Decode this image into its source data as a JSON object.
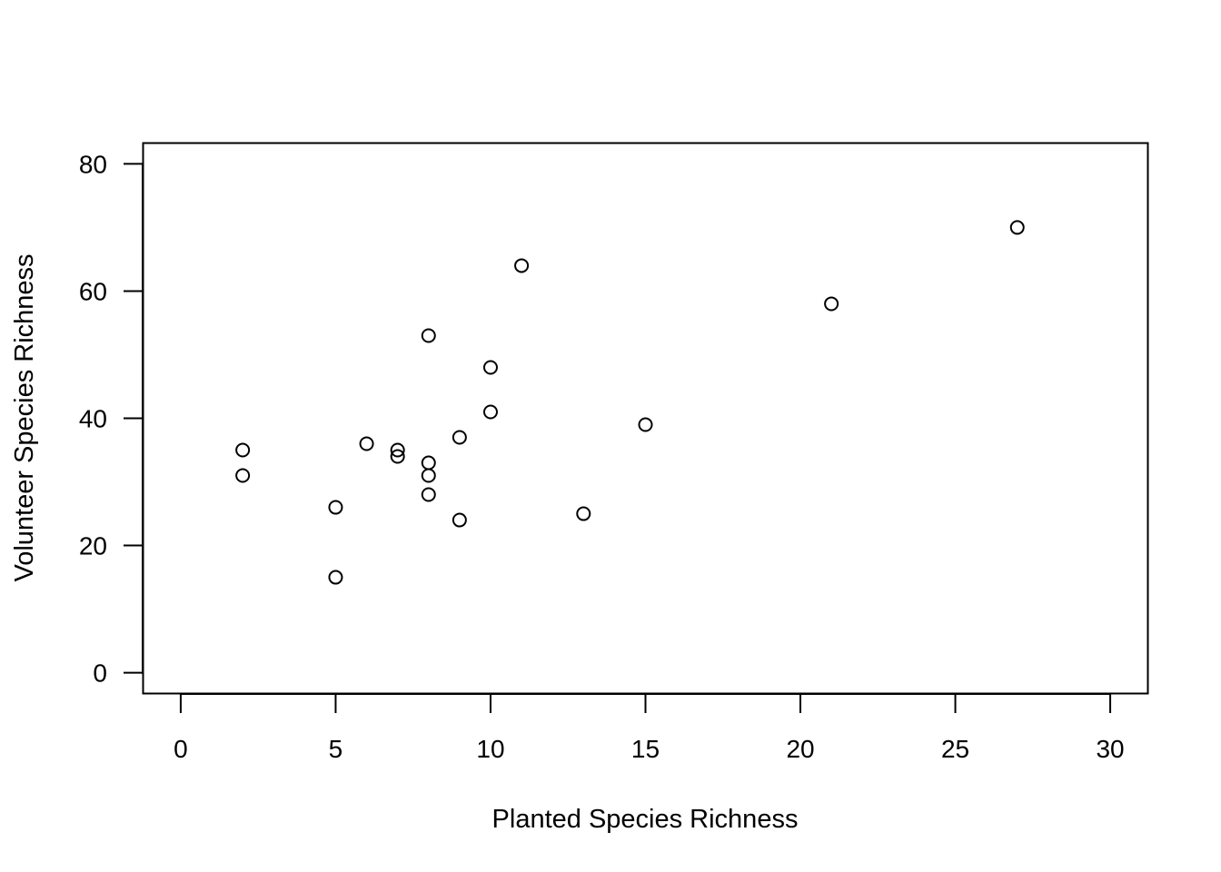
{
  "chart_data": {
    "type": "scatter",
    "title": "",
    "xlabel": "Planted Species Richness",
    "ylabel": "Volunteer Species Richness",
    "xlim": [
      -1.2,
      31.2
    ],
    "ylim": [
      -3.2,
      83.2
    ],
    "xticks": [
      "0",
      "5",
      "10",
      "15",
      "20",
      "25",
      "30"
    ],
    "yticks": [
      "0",
      "20",
      "40",
      "60",
      "80"
    ],
    "grid": false,
    "legend": "none",
    "marker": "open-circle",
    "color": "#000000",
    "points": [
      {
        "x": 2,
        "y": 35
      },
      {
        "x": 2,
        "y": 31
      },
      {
        "x": 5,
        "y": 26
      },
      {
        "x": 5,
        "y": 15
      },
      {
        "x": 6,
        "y": 36
      },
      {
        "x": 7,
        "y": 35
      },
      {
        "x": 7,
        "y": 34
      },
      {
        "x": 8,
        "y": 53
      },
      {
        "x": 8,
        "y": 33
      },
      {
        "x": 8,
        "y": 31
      },
      {
        "x": 8,
        "y": 28
      },
      {
        "x": 9,
        "y": 37
      },
      {
        "x": 9,
        "y": 24
      },
      {
        "x": 10,
        "y": 48
      },
      {
        "x": 10,
        "y": 41
      },
      {
        "x": 11,
        "y": 64
      },
      {
        "x": 13,
        "y": 25
      },
      {
        "x": 15,
        "y": 39
      },
      {
        "x": 21,
        "y": 58
      },
      {
        "x": 27,
        "y": 70
      }
    ]
  }
}
